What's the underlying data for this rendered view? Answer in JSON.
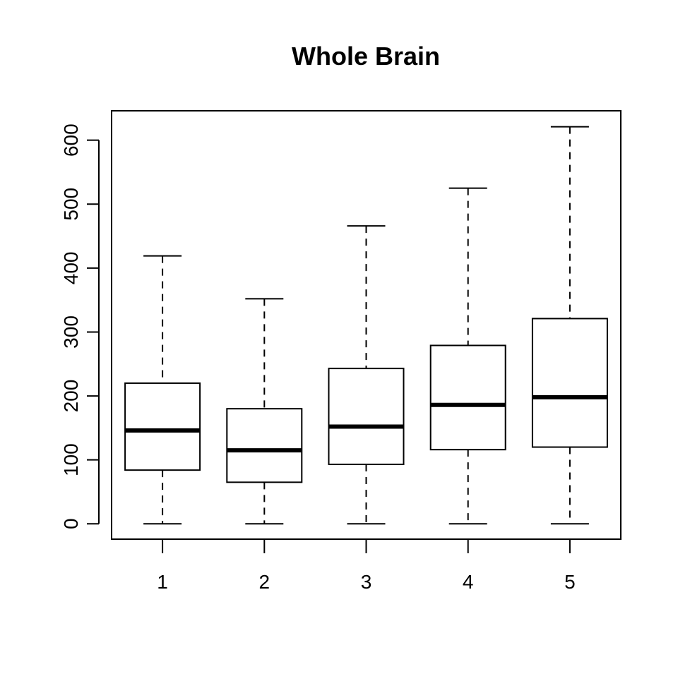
{
  "chart_data": {
    "type": "boxplot",
    "title": "Whole Brain",
    "xlabel": "",
    "ylabel": "",
    "categories": [
      "1",
      "2",
      "3",
      "4",
      "5"
    ],
    "boxes": [
      {
        "category": "1",
        "whisker_low": 0,
        "q1": 84,
        "median": 146,
        "q3": 220,
        "whisker_high": 419
      },
      {
        "category": "2",
        "whisker_low": 0,
        "q1": 65,
        "median": 115,
        "q3": 180,
        "whisker_high": 352
      },
      {
        "category": "3",
        "whisker_low": 0,
        "q1": 93,
        "median": 152,
        "q3": 243,
        "whisker_high": 466
      },
      {
        "category": "4",
        "whisker_low": 0,
        "q1": 116,
        "median": 186,
        "q3": 279,
        "whisker_high": 525
      },
      {
        "category": "5",
        "whisker_low": 0,
        "q1": 120,
        "median": 198,
        "q3": 321,
        "whisker_high": 621
      }
    ],
    "ylim": [
      -24,
      646
    ],
    "yticks": [
      0,
      100,
      200,
      300,
      400,
      500,
      600
    ],
    "ytick_labels": [
      "0",
      "100",
      "200",
      "300",
      "400",
      "500",
      "600"
    ],
    "grid": false,
    "legend": "none",
    "colors": {
      "box_fill": "#ffffff",
      "stroke": "#000000"
    }
  }
}
